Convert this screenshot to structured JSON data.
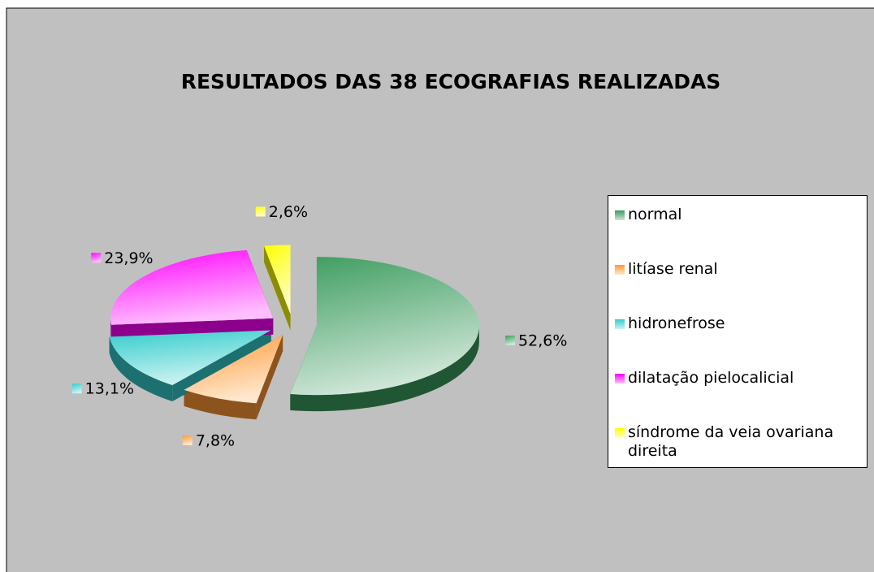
{
  "chart_data": {
    "type": "pie",
    "title": "RESULTADOS DAS 38 ECOGRAFIAS REALIZADAS",
    "categories": [
      "normal",
      "litíase renal",
      "hidronefrose",
      "dilatação pielocalicial",
      "síndrome da veia ovariana direita"
    ],
    "values": [
      52.6,
      7.8,
      13.1,
      23.9,
      2.6
    ],
    "value_labels": [
      "52,6%",
      "7,8%",
      "13,1%",
      "23,9%",
      "2,6%"
    ],
    "colors": [
      "#3c9c5e",
      "#ff9933",
      "#33cccc",
      "#ff00ff",
      "#ffff00"
    ],
    "legend": "right"
  }
}
